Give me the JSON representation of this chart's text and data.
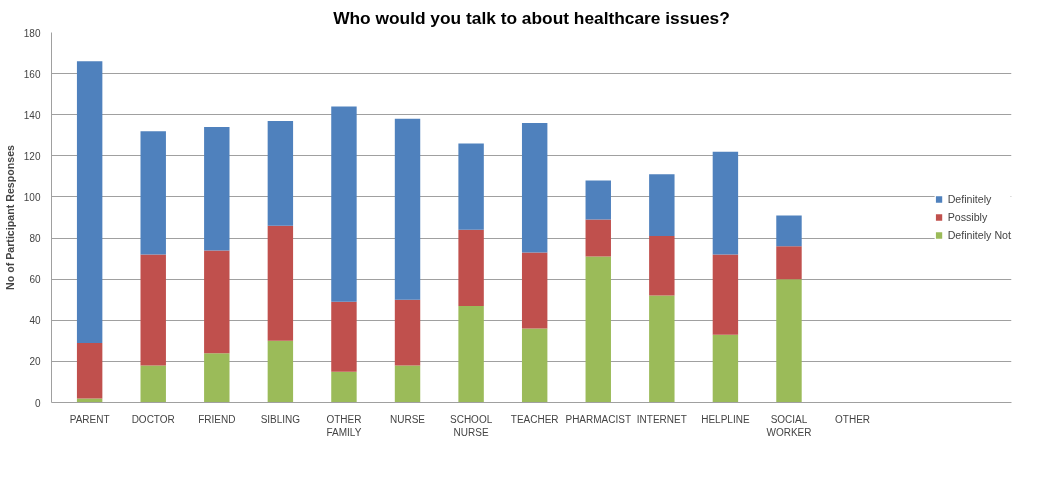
{
  "chart_data": {
    "type": "bar",
    "stacked": true,
    "title": "Who would you talk to about healthcare issues?",
    "ylabel": "No of Participant Responses",
    "categories": [
      "PARENT",
      "DOCTOR",
      "FRIEND",
      "SIBLING",
      "OTHER FAMILY",
      "NURSE",
      "SCHOOL NURSE",
      "TEACHER",
      "PHARMACIST",
      "INTERNET",
      "HELPLINE",
      "SOCIAL WORKER",
      "OTHER"
    ],
    "series": [
      {
        "name": "Definitely Not",
        "color": "#9bbb59",
        "values": [
          2,
          18,
          24,
          30,
          15,
          18,
          47,
          36,
          71,
          52,
          33,
          60,
          0
        ]
      },
      {
        "name": "Possibly",
        "color": "#c0504d",
        "values": [
          27,
          54,
          50,
          56,
          34,
          32,
          37,
          37,
          18,
          29,
          39,
          16,
          0
        ]
      },
      {
        "name": "Definitely",
        "color": "#4f81bd",
        "values": [
          137,
          60,
          60,
          51,
          95,
          88,
          42,
          63,
          19,
          30,
          50,
          15,
          0
        ]
      }
    ],
    "ylim": [
      0,
      180
    ],
    "yticks": [
      0,
      20,
      40,
      60,
      80,
      100,
      120,
      140,
      160,
      180
    ],
    "grid": "y",
    "legend": "right"
  }
}
